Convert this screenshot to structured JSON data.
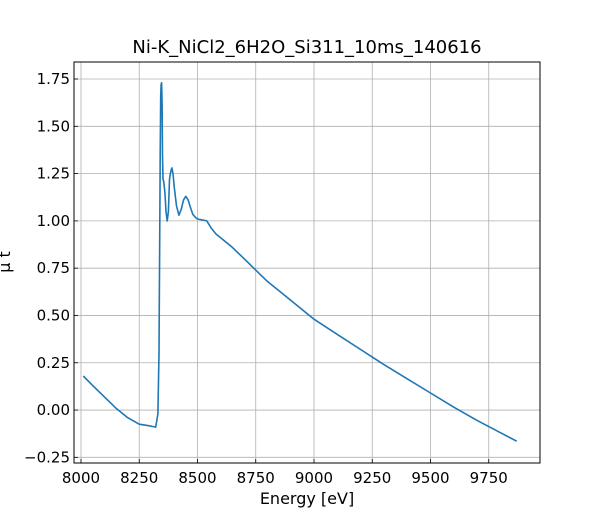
{
  "chart_data": {
    "type": "line",
    "title": "Ni-K_NiCl2_6H2O_Si311_10ms_140616",
    "xlabel": "Energy [eV]",
    "ylabel": "μ t",
    "xlim": [
      7970,
      9970
    ],
    "ylim": [
      -0.28,
      1.84
    ],
    "grid": true,
    "series_color": "#1f77b4",
    "xticks": [
      8000,
      8250,
      8500,
      8750,
      9000,
      9250,
      9500,
      9750
    ],
    "yticks": [
      -0.25,
      0.0,
      0.25,
      0.5,
      0.75,
      1.0,
      1.25,
      1.5,
      1.75
    ],
    "xtick_labels": [
      "8000",
      "8250",
      "8500",
      "8750",
      "9000",
      "9250",
      "9500",
      "9750"
    ],
    "ytick_labels": [
      "−0.25",
      "0.00",
      "0.25",
      "0.50",
      "0.75",
      "1.00",
      "1.25",
      "1.50",
      "1.75"
    ],
    "series": [
      {
        "x": [
          8010,
          8050,
          8100,
          8150,
          8200,
          8250,
          8300,
          8320,
          8325,
          8330,
          8335,
          8338,
          8340,
          8342,
          8344,
          8346,
          8348,
          8350,
          8352,
          8355,
          8360,
          8365,
          8370,
          8375,
          8380,
          8385,
          8390,
          8395,
          8400,
          8410,
          8420,
          8430,
          8440,
          8450,
          8460,
          8470,
          8480,
          8490,
          8500,
          8520,
          8540,
          8560,
          8580,
          8600,
          8620,
          8650,
          8700,
          8750,
          8800,
          8900,
          9000,
          9100,
          9200,
          9300,
          9400,
          9500,
          9600,
          9700,
          9800,
          9870
        ],
        "y": [
          0.18,
          0.13,
          0.07,
          0.01,
          -0.04,
          -0.075,
          -0.085,
          -0.09,
          -0.06,
          -0.02,
          0.3,
          0.9,
          1.35,
          1.66,
          1.72,
          1.73,
          1.62,
          1.35,
          1.22,
          1.21,
          1.15,
          1.05,
          1.0,
          1.05,
          1.22,
          1.26,
          1.28,
          1.25,
          1.18,
          1.08,
          1.03,
          1.06,
          1.11,
          1.13,
          1.11,
          1.07,
          1.035,
          1.02,
          1.01,
          1.005,
          1.0,
          0.96,
          0.93,
          0.91,
          0.89,
          0.86,
          0.8,
          0.74,
          0.68,
          0.58,
          0.48,
          0.4,
          0.32,
          0.24,
          0.165,
          0.09,
          0.015,
          -0.055,
          -0.12,
          -0.165
        ]
      }
    ]
  }
}
